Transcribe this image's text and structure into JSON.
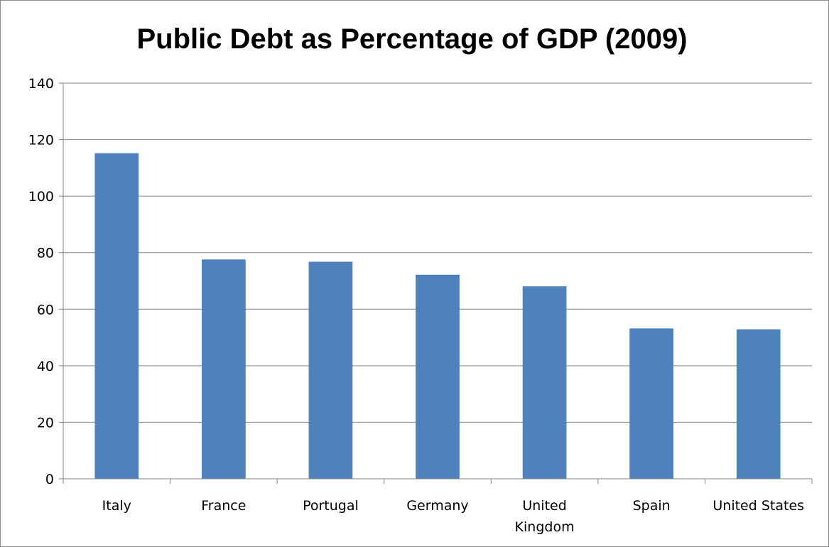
{
  "chart_data": {
    "type": "bar",
    "title": "Public Debt as Percentage of GDP (2009)",
    "xlabel": "",
    "ylabel": "",
    "categories": [
      "Italy",
      "France",
      "Portugal",
      "Germany",
      "United Kingdom",
      "Spain",
      "United States"
    ],
    "category_lines": [
      [
        "Italy"
      ],
      [
        "France"
      ],
      [
        "Portugal"
      ],
      [
        "Germany"
      ],
      [
        "United",
        "Kingdom"
      ],
      [
        "Spain"
      ],
      [
        "United States"
      ]
    ],
    "values": [
      115.2,
      77.6,
      76.8,
      72.2,
      68.1,
      53.2,
      52.9
    ],
    "ylim": [
      0,
      140
    ],
    "yticks": [
      0,
      20,
      40,
      60,
      80,
      100,
      120,
      140
    ],
    "grid": true,
    "legend": "none",
    "bar_color": "#4f81bd",
    "grid_color": "#868686"
  }
}
